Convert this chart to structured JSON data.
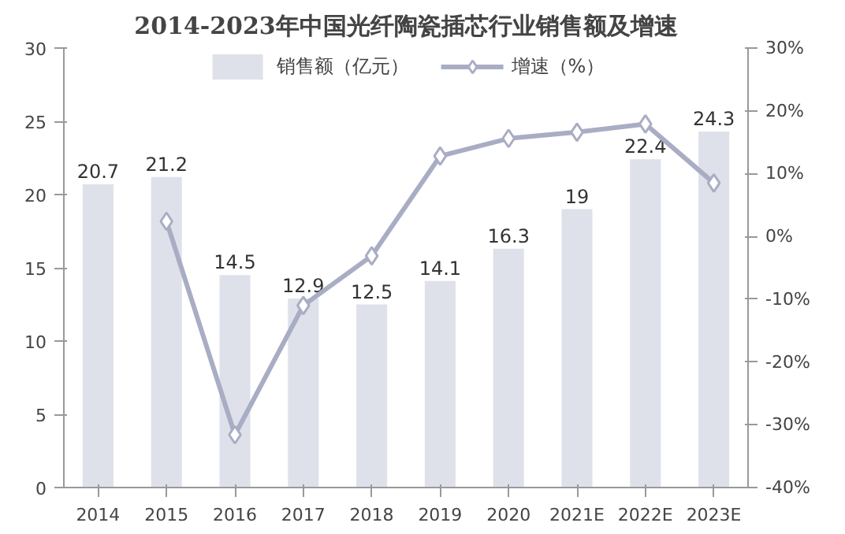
{
  "chart_data": {
    "type": "bar",
    "title": "2014-2023年中国光纤陶瓷插芯行业销售额及增速",
    "categories": [
      "2014",
      "2015",
      "2016",
      "2017",
      "2018",
      "2019",
      "2020",
      "2021E",
      "2022E",
      "2023E"
    ],
    "series": [
      {
        "name": "销售额（亿元）",
        "color": "#dfe1ea",
        "values": [
          20.7,
          21.2,
          14.5,
          12.9,
          12.5,
          14.1,
          16.3,
          19,
          22.4,
          24.3
        ],
        "value_labels": [
          "20.7",
          "21.2",
          "14.5",
          "12.9",
          "12.5",
          "14.1",
          "16.3",
          "19",
          "22.4",
          "24.3"
        ]
      },
      {
        "name": "增速（%）",
        "type": "line",
        "axis": "y2",
        "color": "#a9adc4",
        "marker": "diamond",
        "values": [
          null,
          2.4,
          -31.6,
          -11.0,
          -3.1,
          12.8,
          15.6,
          16.6,
          17.9,
          8.5
        ]
      }
    ],
    "ylim": [
      0,
      30
    ],
    "yticks": [
      0,
      5,
      10,
      15,
      20,
      25,
      30
    ],
    "y2lim": [
      -40,
      30
    ],
    "y2ticks": [
      {
        "value": -40,
        "label": "-40%"
      },
      {
        "value": -30,
        "label": "-30%"
      },
      {
        "value": -20,
        "label": "-20%"
      },
      {
        "value": -10,
        "label": "-10%"
      },
      {
        "value": 0,
        "label": "0%"
      },
      {
        "value": 10,
        "label": "10%"
      },
      {
        "value": 20,
        "label": "20%"
      },
      {
        "value": 30,
        "label": "30%"
      }
    ],
    "grid": false,
    "legend": "top"
  }
}
